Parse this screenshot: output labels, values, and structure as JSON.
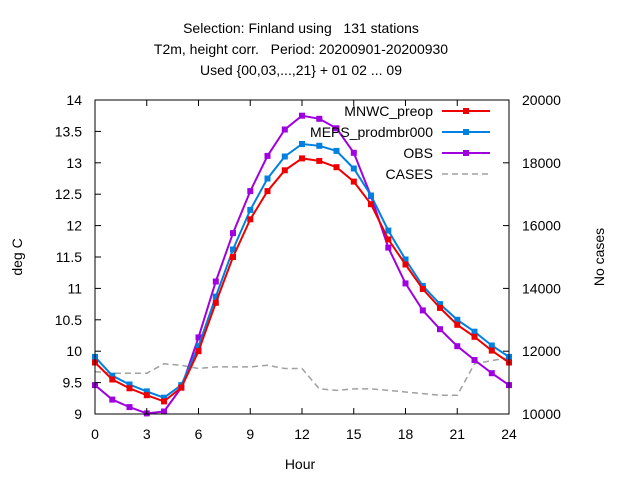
{
  "chart_data": {
    "type": "line",
    "title_lines": [
      "Selection: Finland using   131 stations",
      "T2m, height corr.   Period: 20200901-20200930",
      "Used {00,03,...,21} + 01 02 ... 09"
    ],
    "xlabel": "Hour",
    "ylabel": "deg C",
    "y2label": "No cases",
    "xlim": [
      0,
      24
    ],
    "ylim": [
      9,
      14
    ],
    "y2lim": [
      10000,
      20000
    ],
    "xticks": [
      0,
      3,
      6,
      9,
      12,
      15,
      18,
      21,
      24
    ],
    "yticks": [
      9,
      9.5,
      10,
      10.5,
      11,
      11.5,
      12,
      12.5,
      13,
      13.5,
      14
    ],
    "y2ticks": [
      10000,
      12000,
      14000,
      16000,
      18000,
      20000
    ],
    "grid": false,
    "legend_position": "top-right",
    "x": [
      0,
      1,
      2,
      3,
      4,
      5,
      6,
      7,
      8,
      9,
      10,
      11,
      12,
      13,
      14,
      15,
      16,
      17,
      18,
      19,
      20,
      21,
      22,
      23,
      24
    ],
    "series": [
      {
        "name": "MNWC_preop",
        "color": "#ee0000",
        "axis": "y",
        "values": [
          9.82,
          9.55,
          9.41,
          9.3,
          9.2,
          9.42,
          10.0,
          10.77,
          11.5,
          12.1,
          12.55,
          12.88,
          13.07,
          13.03,
          12.93,
          12.7,
          12.34,
          11.78,
          11.38,
          10.99,
          10.69,
          10.42,
          10.23,
          10.01,
          9.82
        ]
      },
      {
        "name": "MEPS_prodmbr000",
        "color": "#0080e0",
        "axis": "y",
        "values": [
          9.91,
          9.61,
          9.47,
          9.36,
          9.26,
          9.46,
          10.08,
          10.87,
          11.62,
          12.25,
          12.75,
          13.1,
          13.3,
          13.27,
          13.19,
          12.91,
          12.48,
          11.92,
          11.46,
          11.04,
          10.75,
          10.5,
          10.31,
          10.09,
          9.91
        ]
      },
      {
        "name": "OBS",
        "color": "#a000e0",
        "axis": "y",
        "values": [
          9.46,
          9.23,
          9.11,
          9.01,
          9.04,
          9.42,
          10.22,
          11.11,
          11.88,
          12.55,
          13.11,
          13.53,
          13.75,
          13.7,
          13.55,
          13.16,
          12.47,
          11.65,
          11.08,
          10.65,
          10.35,
          10.08,
          9.86,
          9.65,
          9.46
        ]
      },
      {
        "name": "CASES",
        "color": "#a0a0a0",
        "axis": "y2",
        "dashed": true,
        "values": [
          11350,
          11300,
          11300,
          11300,
          11600,
          11550,
          11450,
          11500,
          11500,
          11500,
          11550,
          11450,
          11450,
          10800,
          10750,
          10800,
          10800,
          10750,
          10700,
          10650,
          10600,
          10600,
          11600,
          11700,
          11800
        ]
      }
    ]
  }
}
